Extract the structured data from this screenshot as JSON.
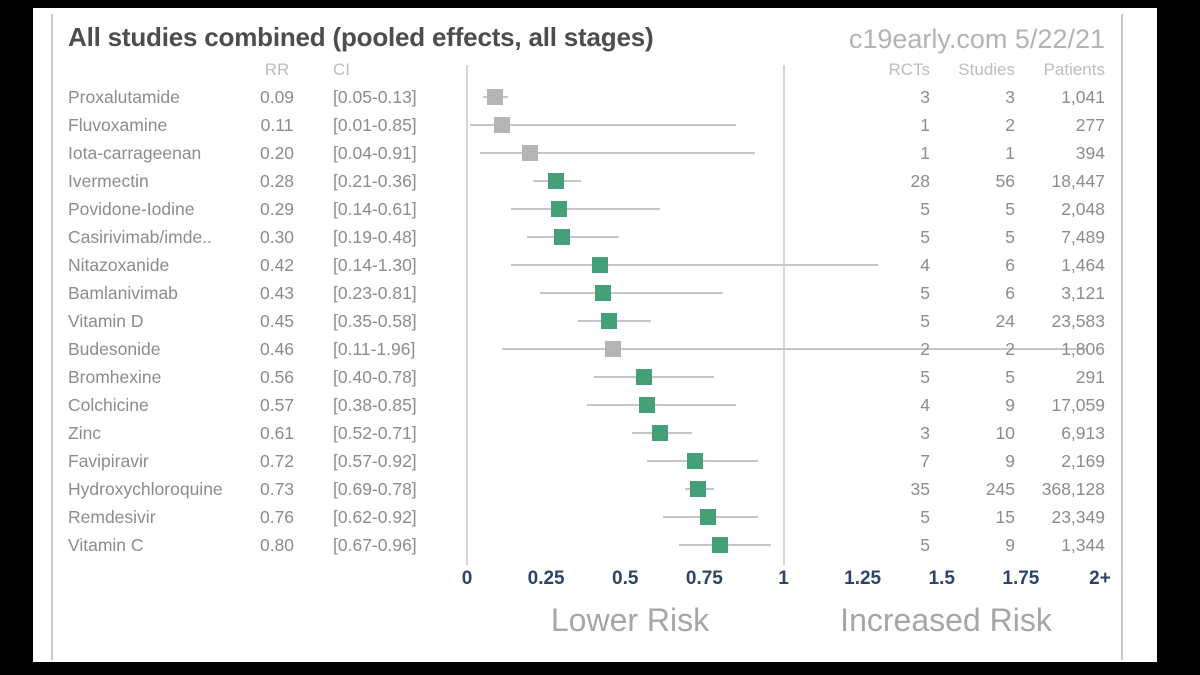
{
  "header": {
    "title": "All studies combined (pooled effects, all stages)",
    "brand": "c19early.com 5/22/21"
  },
  "columns": {
    "rr": "RR",
    "ci": "CI",
    "rcts": "RCTs",
    "studies": "Studies",
    "patients": "Patients"
  },
  "chart_data": {
    "type": "forest",
    "title": "All studies combined (pooled effects, all stages)",
    "x_range": [
      0,
      2
    ],
    "reference_lines": [
      0,
      1
    ],
    "ticks": [
      {
        "label": "0",
        "value": 0
      },
      {
        "label": "0.25",
        "value": 0.25
      },
      {
        "label": "0.5",
        "value": 0.5
      },
      {
        "label": "0.75",
        "value": 0.75
      },
      {
        "label": "1",
        "value": 1
      },
      {
        "label": "1.25",
        "value": 1.25
      },
      {
        "label": "1.5",
        "value": 1.5
      },
      {
        "label": "1.75",
        "value": 1.75
      },
      {
        "label": "2+",
        "value": 2
      }
    ],
    "footer_labels": {
      "lower": "Lower Risk",
      "increased": "Increased Risk"
    },
    "colors": {
      "green": "#44a078",
      "gray": "#b5b5b5",
      "ci_line": "#c6c6c6"
    },
    "rows": [
      {
        "name": "Proxalutamide",
        "rr": 0.09,
        "rr_text": "0.09",
        "ci_low": 0.05,
        "ci_high": 0.13,
        "ci_text": "[0.05-0.13]",
        "color": "gray",
        "rcts": "3",
        "studies": "3",
        "patients": "1,041"
      },
      {
        "name": "Fluvoxamine",
        "rr": 0.11,
        "rr_text": "0.11",
        "ci_low": 0.01,
        "ci_high": 0.85,
        "ci_text": "[0.01-0.85]",
        "color": "gray",
        "rcts": "1",
        "studies": "2",
        "patients": "277"
      },
      {
        "name": "Iota-carrageenan",
        "rr": 0.2,
        "rr_text": "0.20",
        "ci_low": 0.04,
        "ci_high": 0.91,
        "ci_text": "[0.04-0.91]",
        "color": "gray",
        "rcts": "1",
        "studies": "1",
        "patients": "394"
      },
      {
        "name": "Ivermectin",
        "rr": 0.28,
        "rr_text": "0.28",
        "ci_low": 0.21,
        "ci_high": 0.36,
        "ci_text": "[0.21-0.36]",
        "color": "green",
        "rcts": "28",
        "studies": "56",
        "patients": "18,447"
      },
      {
        "name": "Povidone-Iodine",
        "rr": 0.29,
        "rr_text": "0.29",
        "ci_low": 0.14,
        "ci_high": 0.61,
        "ci_text": "[0.14-0.61]",
        "color": "green",
        "rcts": "5",
        "studies": "5",
        "patients": "2,048"
      },
      {
        "name": "Casirivimab/imde..",
        "rr": 0.3,
        "rr_text": "0.30",
        "ci_low": 0.19,
        "ci_high": 0.48,
        "ci_text": "[0.19-0.48]",
        "color": "green",
        "rcts": "5",
        "studies": "5",
        "patients": "7,489"
      },
      {
        "name": "Nitazoxanide",
        "rr": 0.42,
        "rr_text": "0.42",
        "ci_low": 0.14,
        "ci_high": 1.3,
        "ci_text": "[0.14-1.30]",
        "color": "green",
        "rcts": "4",
        "studies": "6",
        "patients": "1,464"
      },
      {
        "name": "Bamlanivimab",
        "rr": 0.43,
        "rr_text": "0.43",
        "ci_low": 0.23,
        "ci_high": 0.81,
        "ci_text": "[0.23-0.81]",
        "color": "green",
        "rcts": "5",
        "studies": "6",
        "patients": "3,121"
      },
      {
        "name": "Vitamin D",
        "rr": 0.45,
        "rr_text": "0.45",
        "ci_low": 0.35,
        "ci_high": 0.58,
        "ci_text": "[0.35-0.58]",
        "color": "green",
        "rcts": "5",
        "studies": "24",
        "patients": "23,583"
      },
      {
        "name": "Budesonide",
        "rr": 0.46,
        "rr_text": "0.46",
        "ci_low": 0.11,
        "ci_high": 1.96,
        "ci_text": "[0.11-1.96]",
        "color": "gray",
        "rcts": "2",
        "studies": "2",
        "patients": "1,806"
      },
      {
        "name": "Bromhexine",
        "rr": 0.56,
        "rr_text": "0.56",
        "ci_low": 0.4,
        "ci_high": 0.78,
        "ci_text": "[0.40-0.78]",
        "color": "green",
        "rcts": "5",
        "studies": "5",
        "patients": "291"
      },
      {
        "name": "Colchicine",
        "rr": 0.57,
        "rr_text": "0.57",
        "ci_low": 0.38,
        "ci_high": 0.85,
        "ci_text": "[0.38-0.85]",
        "color": "green",
        "rcts": "4",
        "studies": "9",
        "patients": "17,059"
      },
      {
        "name": "Zinc",
        "rr": 0.61,
        "rr_text": "0.61",
        "ci_low": 0.52,
        "ci_high": 0.71,
        "ci_text": "[0.52-0.71]",
        "color": "green",
        "rcts": "3",
        "studies": "10",
        "patients": "6,913"
      },
      {
        "name": "Favipiravir",
        "rr": 0.72,
        "rr_text": "0.72",
        "ci_low": 0.57,
        "ci_high": 0.92,
        "ci_text": "[0.57-0.92]",
        "color": "green",
        "rcts": "7",
        "studies": "9",
        "patients": "2,169"
      },
      {
        "name": "Hydroxychloroquine",
        "rr": 0.73,
        "rr_text": "0.73",
        "ci_low": 0.69,
        "ci_high": 0.78,
        "ci_text": "[0.69-0.78]",
        "color": "green",
        "rcts": "35",
        "studies": "245",
        "patients": "368,128"
      },
      {
        "name": "Remdesivir",
        "rr": 0.76,
        "rr_text": "0.76",
        "ci_low": 0.62,
        "ci_high": 0.92,
        "ci_text": "[0.62-0.92]",
        "color": "green",
        "rcts": "5",
        "studies": "15",
        "patients": "23,349"
      },
      {
        "name": "Vitamin C",
        "rr": 0.8,
        "rr_text": "0.80",
        "ci_low": 0.67,
        "ci_high": 0.96,
        "ci_text": "[0.67-0.96]",
        "color": "green",
        "rcts": "5",
        "studies": "9",
        "patients": "1,344"
      }
    ]
  }
}
